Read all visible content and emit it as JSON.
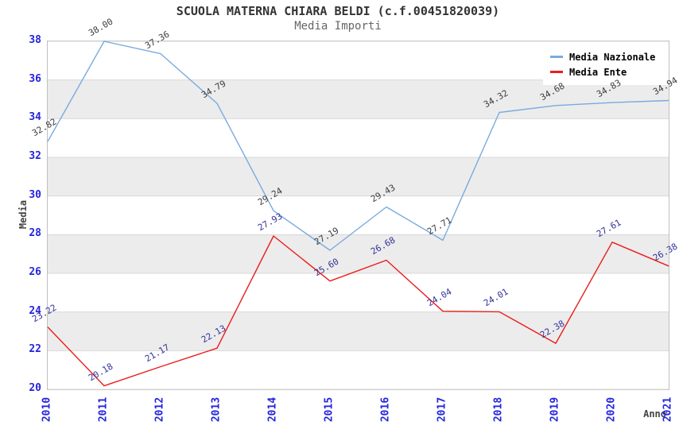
{
  "chart_data": {
    "type": "line",
    "title": "SCUOLA MATERNA CHIARA BELDI (c.f.00451820039)",
    "subtitle": "Media Importi",
    "xlabel": "Anno",
    "ylabel": "Media",
    "x": [
      "2010",
      "2011",
      "2012",
      "2013",
      "2014",
      "2015",
      "2016",
      "2017",
      "2018",
      "2019",
      "2020",
      "2021"
    ],
    "ylim": [
      20,
      38
    ],
    "ytick_step": 2,
    "ytick_labels": [
      "20",
      "22",
      "24",
      "26",
      "28",
      "30",
      "32",
      "34",
      "36",
      "38"
    ],
    "grid": "horizontal gridlines every 2 units with alternating gray bands",
    "legend_position": "top-right inside plot",
    "point_label_format": "2 decimals, rotated -30deg above each point",
    "series": [
      {
        "name": "Media Nazionale",
        "color": "#79aade",
        "label_color": "#3d3d3d",
        "values": [
          32.82,
          38.0,
          37.36,
          34.79,
          29.24,
          27.19,
          29.43,
          27.71,
          34.32,
          34.68,
          34.83,
          34.94
        ]
      },
      {
        "name": "Media Ente",
        "color": "#ec1c1c",
        "label_color": "#333399",
        "values": [
          23.22,
          20.18,
          21.17,
          22.13,
          27.93,
          25.6,
          26.68,
          24.04,
          24.01,
          22.38,
          27.61,
          26.38
        ]
      }
    ],
    "colors": {
      "tick_label": "#2424dd",
      "band": "#ececec",
      "gridline": "#d8d8d8",
      "plot_border": "#bfbfbf",
      "title": "#333333",
      "subtitle": "#666666",
      "axis_title": "#444444",
      "legend_text": "#000000",
      "background": "#ffffff"
    }
  }
}
